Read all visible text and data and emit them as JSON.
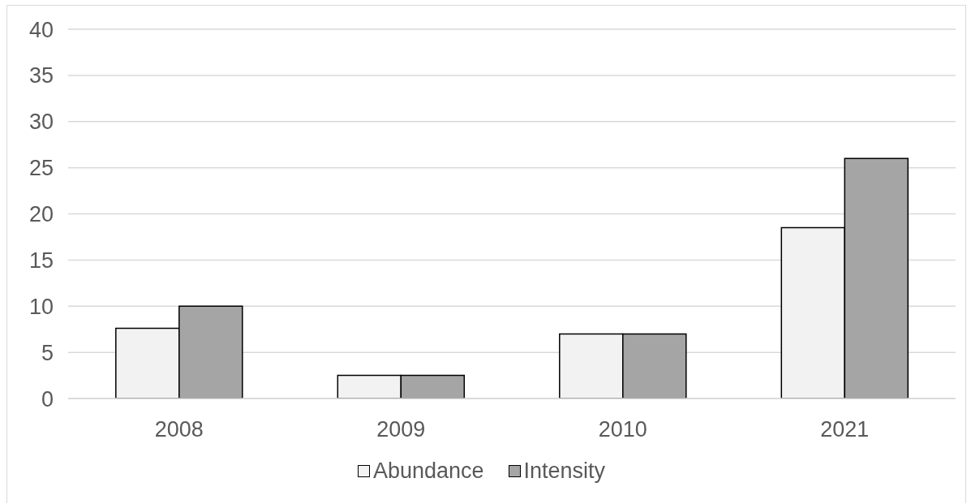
{
  "chart_data": {
    "type": "bar",
    "categories": [
      "2008",
      "2009",
      "2010",
      "2021"
    ],
    "series": [
      {
        "name": "Abundance",
        "color": "#f2f2f2",
        "values": [
          7.6,
          2.5,
          7,
          18.5
        ]
      },
      {
        "name": "Intensity",
        "color": "#a5a5a5",
        "values": [
          10,
          2.5,
          7,
          26
        ]
      }
    ],
    "ylim": [
      0,
      40
    ],
    "yticks": [
      0,
      5,
      10,
      15,
      20,
      25,
      30,
      35,
      40
    ],
    "grid": "y",
    "legend": "bottom"
  }
}
